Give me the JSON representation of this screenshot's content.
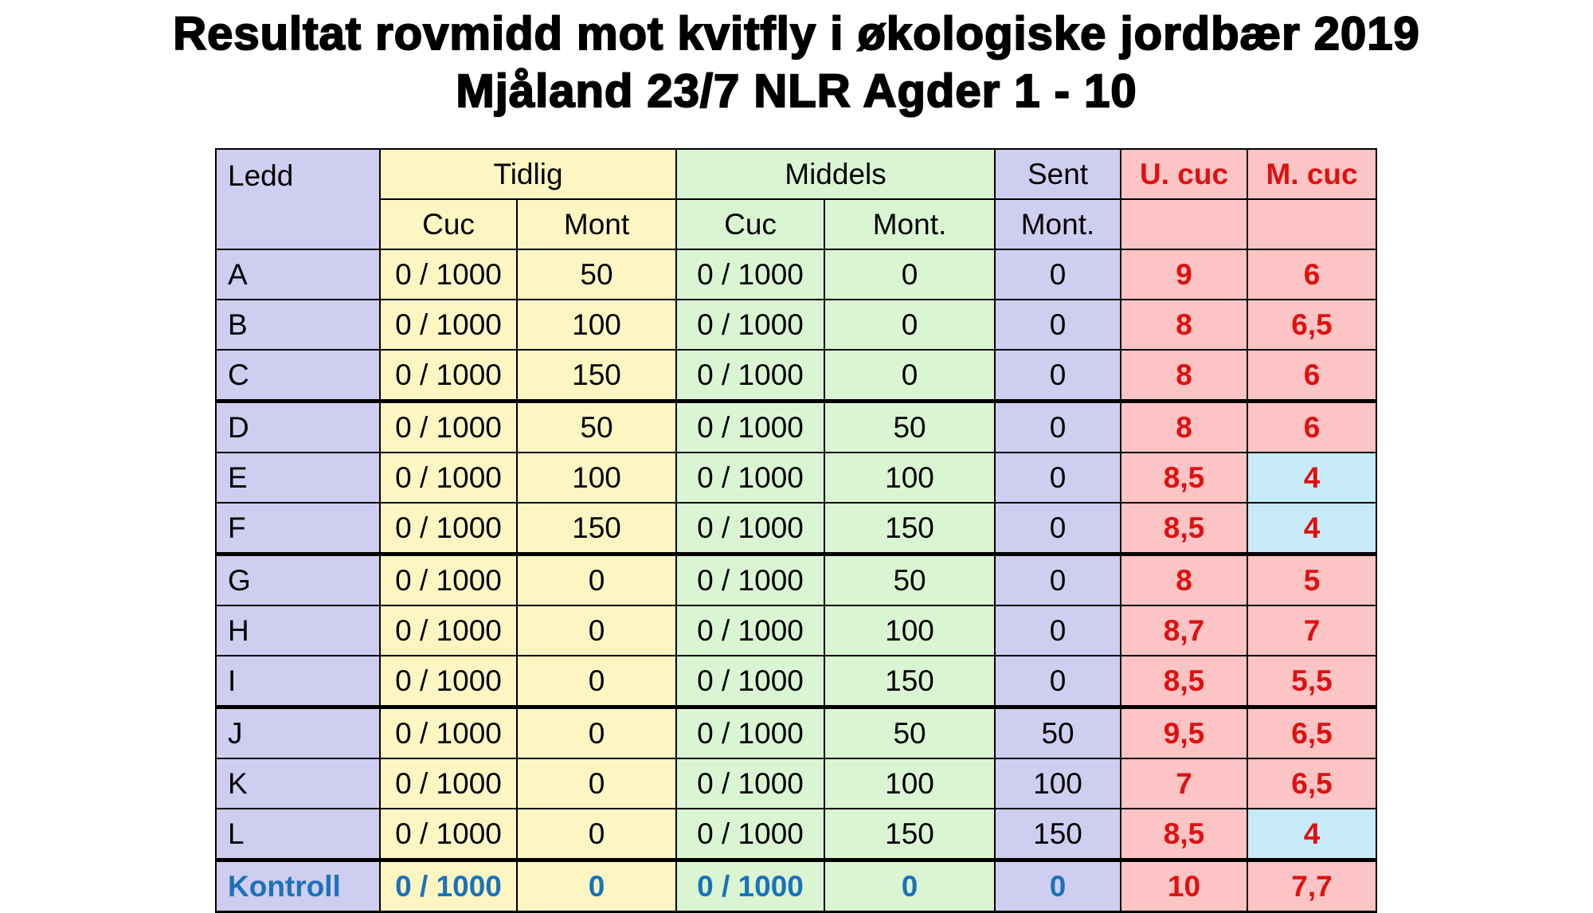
{
  "title_line1": "Resultat rovmidd mot kvitfly i økologiske jordbær 2019",
  "title_line2": "Mjåland 23/7 NLR Agder 1 - 10",
  "headers": {
    "ledd": "Ledd",
    "tidlig": "Tidlig",
    "middels": "Middels",
    "sent": "Sent",
    "u_cuc": "U. cuc",
    "m_cuc": "M. cuc",
    "tidlig_cuc": "Cuc",
    "tidlig_mont": "Mont",
    "middels_cuc": "Cuc",
    "middels_mont": "Mont.",
    "sent_mont": "Mont."
  },
  "colors": {
    "ledd": "#cfcdf0",
    "tidlig": "#fdf6c2",
    "middels": "#daf5d2",
    "sent": "#cfcdf0",
    "score": "#fcc4c4",
    "score_highlight": "#c6eaf8",
    "score_text": "#e01010",
    "kontroll_text": "#1a73b8"
  },
  "rows": [
    {
      "ledd": "A",
      "tidlig_cuc": "0 / 1000",
      "tidlig_mont": "50",
      "middels_cuc": "0 / 1000",
      "middels_mont": "0",
      "sent_mont": "0",
      "u_cuc": "9",
      "m_cuc": "6"
    },
    {
      "ledd": "B",
      "tidlig_cuc": "0 / 1000",
      "tidlig_mont": "100",
      "middels_cuc": "0 / 1000",
      "middels_mont": "0",
      "sent_mont": "0",
      "u_cuc": "8",
      "m_cuc": "6,5"
    },
    {
      "ledd": "C",
      "tidlig_cuc": "0 / 1000",
      "tidlig_mont": "150",
      "middels_cuc": "0 / 1000",
      "middels_mont": "0",
      "sent_mont": "0",
      "u_cuc": "8",
      "m_cuc": "6"
    },
    {
      "ledd": "D",
      "tidlig_cuc": "0 / 1000",
      "tidlig_mont": "50",
      "middels_cuc": "0 / 1000",
      "middels_mont": "50",
      "sent_mont": "0",
      "u_cuc": "8",
      "m_cuc": "6"
    },
    {
      "ledd": "E",
      "tidlig_cuc": "0 / 1000",
      "tidlig_mont": "100",
      "middels_cuc": "0 / 1000",
      "middels_mont": "100",
      "sent_mont": "0",
      "u_cuc": "8,5",
      "m_cuc": "4"
    },
    {
      "ledd": "F",
      "tidlig_cuc": "0 / 1000",
      "tidlig_mont": "150",
      "middels_cuc": "0 / 1000",
      "middels_mont": "150",
      "sent_mont": "0",
      "u_cuc": "8,5",
      "m_cuc": "4"
    },
    {
      "ledd": "G",
      "tidlig_cuc": "0 / 1000",
      "tidlig_mont": "0",
      "middels_cuc": "0 / 1000",
      "middels_mont": "50",
      "sent_mont": "0",
      "u_cuc": "8",
      "m_cuc": "5"
    },
    {
      "ledd": "H",
      "tidlig_cuc": "0 / 1000",
      "tidlig_mont": "0",
      "middels_cuc": "0 / 1000",
      "middels_mont": "100",
      "sent_mont": "0",
      "u_cuc": "8,7",
      "m_cuc": "7"
    },
    {
      "ledd": "I",
      "tidlig_cuc": "0 / 1000",
      "tidlig_mont": "0",
      "middels_cuc": "0 / 1000",
      "middels_mont": "150",
      "sent_mont": "0",
      "u_cuc": "8,5",
      "m_cuc": "5,5"
    },
    {
      "ledd": "J",
      "tidlig_cuc": "0 / 1000",
      "tidlig_mont": "0",
      "middels_cuc": "0 / 1000",
      "middels_mont": "50",
      "sent_mont": "50",
      "u_cuc": "9,5",
      "m_cuc": "6,5"
    },
    {
      "ledd": "K",
      "tidlig_cuc": "0 / 1000",
      "tidlig_mont": "0",
      "middels_cuc": "0 / 1000",
      "middels_mont": "100",
      "sent_mont": "100",
      "u_cuc": "7",
      "m_cuc": "6,5"
    },
    {
      "ledd": "L",
      "tidlig_cuc": "0 / 1000",
      "tidlig_mont": "0",
      "middels_cuc": "0 / 1000",
      "middels_mont": "150",
      "sent_mont": "150",
      "u_cuc": "8,5",
      "m_cuc": "4"
    },
    {
      "ledd": "Kontroll",
      "tidlig_cuc": "0 / 1000",
      "tidlig_mont": "0",
      "middels_cuc": "0 / 1000",
      "middels_mont": "0",
      "sent_mont": "0",
      "u_cuc": "10",
      "m_cuc": "7,7"
    }
  ]
}
